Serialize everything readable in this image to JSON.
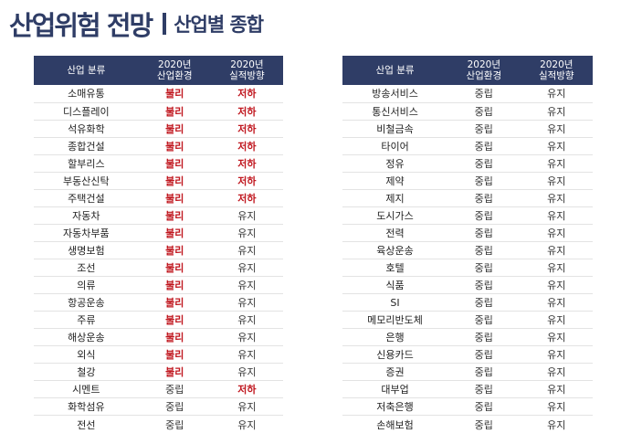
{
  "title": {
    "main": "산업위험 전망",
    "sub": "산업별 종합"
  },
  "colors": {
    "header_bg": "#2f3d66",
    "negative": "#c0171f",
    "neutral": "#333333"
  },
  "left_table": {
    "headers": [
      "산업 분류",
      "2020년\n산업환경",
      "2020년\n실적방향"
    ],
    "rows": [
      [
        "소매유통",
        "불리",
        "저하"
      ],
      [
        "디스플레이",
        "불리",
        "저하"
      ],
      [
        "석유화학",
        "불리",
        "저하"
      ],
      [
        "종합건설",
        "불리",
        "저하"
      ],
      [
        "할부리스",
        "불리",
        "저하"
      ],
      [
        "부동산신탁",
        "불리",
        "저하"
      ],
      [
        "주택건설",
        "불리",
        "저하"
      ],
      [
        "자동차",
        "불리",
        "유지"
      ],
      [
        "자동차부품",
        "불리",
        "유지"
      ],
      [
        "생명보험",
        "불리",
        "유지"
      ],
      [
        "조선",
        "불리",
        "유지"
      ],
      [
        "의류",
        "불리",
        "유지"
      ],
      [
        "항공운송",
        "불리",
        "유지"
      ],
      [
        "주류",
        "불리",
        "유지"
      ],
      [
        "해상운송",
        "불리",
        "유지"
      ],
      [
        "외식",
        "불리",
        "유지"
      ],
      [
        "철강",
        "불리",
        "유지"
      ],
      [
        "시멘트",
        "중립",
        "저하"
      ],
      [
        "화학섬유",
        "중립",
        "유지"
      ],
      [
        "전선",
        "중립",
        "유지"
      ]
    ]
  },
  "right_table": {
    "headers": [
      "산업 분류",
      "2020년\n산업환경",
      "2020년\n실적방향"
    ],
    "rows": [
      [
        "방송서비스",
        "중립",
        "유지"
      ],
      [
        "통신서비스",
        "중립",
        "유지"
      ],
      [
        "비철금속",
        "중립",
        "유지"
      ],
      [
        "타이어",
        "중립",
        "유지"
      ],
      [
        "정유",
        "중립",
        "유지"
      ],
      [
        "제약",
        "중립",
        "유지"
      ],
      [
        "제지",
        "중립",
        "유지"
      ],
      [
        "도시가스",
        "중립",
        "유지"
      ],
      [
        "전력",
        "중립",
        "유지"
      ],
      [
        "육상운송",
        "중립",
        "유지"
      ],
      [
        "호텔",
        "중립",
        "유지"
      ],
      [
        "식품",
        "중립",
        "유지"
      ],
      [
        "SI",
        "중립",
        "유지"
      ],
      [
        "메모리반도체",
        "중립",
        "유지"
      ],
      [
        "은행",
        "중립",
        "유지"
      ],
      [
        "신용카드",
        "중립",
        "유지"
      ],
      [
        "증권",
        "중립",
        "유지"
      ],
      [
        "대부업",
        "중립",
        "유지"
      ],
      [
        "저축은행",
        "중립",
        "유지"
      ],
      [
        "손해보험",
        "중립",
        "유지"
      ]
    ]
  }
}
